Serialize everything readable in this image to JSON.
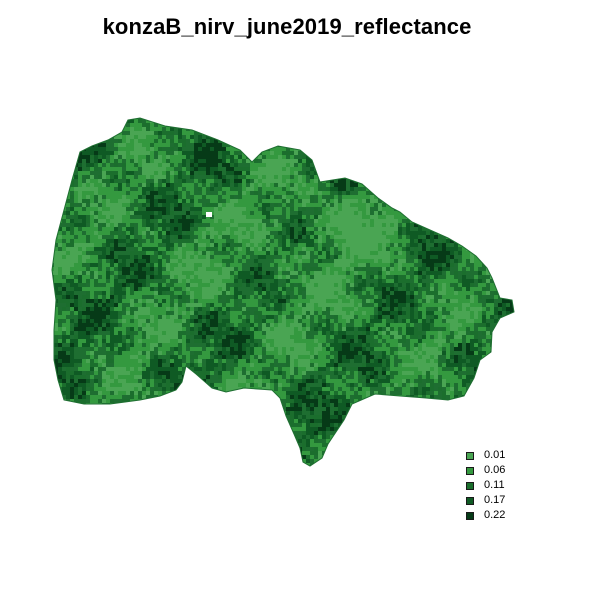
{
  "map": {
    "title": "konzaB_nirv_june2019_reflectance",
    "base_color": "#1e6e31",
    "boundary_color": "#1e6e31"
  },
  "legend": {
    "items": [
      {
        "label": "0.01",
        "color": "#4aa553"
      },
      {
        "label": "0.06",
        "color": "#34993f"
      },
      {
        "label": "0.11",
        "color": "#1b6e2d"
      },
      {
        "label": "0.17",
        "color": "#0f5a24"
      },
      {
        "label": "0.22",
        "color": "#063a17"
      }
    ]
  }
}
